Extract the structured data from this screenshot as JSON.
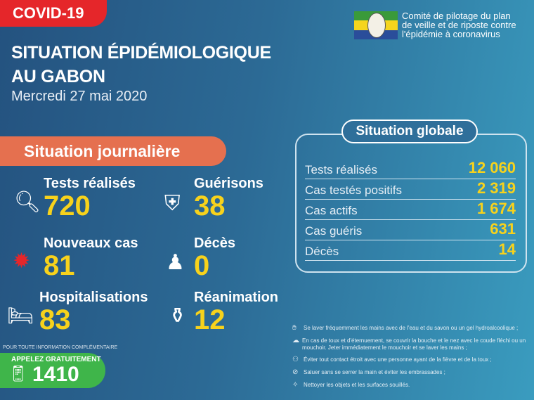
{
  "header": {
    "badge": "COVID-19",
    "title_line1": "SITUATION ÉPIDÉMIOLOGIQUE",
    "title_line2": "AU GABON",
    "date": "Mercredi 27 mai 2020",
    "committee": [
      "Comité de pilotage du plan",
      "de veille et de riposte contre",
      "l'épidémie à coronavirus"
    ],
    "flag_colors": [
      "#3a9a3a",
      "#f5d51e",
      "#2a4d9a"
    ]
  },
  "daily": {
    "title": "Situation journalière",
    "stats": [
      {
        "label": "Tests réalisés",
        "value": "720",
        "icon": "magnifier-icon"
      },
      {
        "label": "Guérisons",
        "value": "38",
        "icon": "healing-shield-icon"
      },
      {
        "label": "Nouveaux cas",
        "value": "81",
        "icon": "virus-icon"
      },
      {
        "label": "Décès",
        "value": "0",
        "icon": "person-icon"
      },
      {
        "label": "Hospitalisations",
        "value": "83",
        "icon": "hospital-bed-icon"
      },
      {
        "label": "Réanimation",
        "value": "12",
        "icon": "oxygen-tank-icon"
      }
    ]
  },
  "global": {
    "title": "Situation globale",
    "rows": [
      {
        "label": "Tests réalisés",
        "value": "12 060"
      },
      {
        "label": "Cas testés positifs",
        "value": "2 319"
      },
      {
        "label": "Cas actifs",
        "value": "1 674"
      },
      {
        "label": "Cas guéris",
        "value": "631"
      },
      {
        "label": "Décès",
        "value": "14"
      }
    ]
  },
  "hotline": {
    "note": "POUR TOUTE INFORMATION COMPLÉMENTAIRE",
    "label": "APPELEZ GRATUITEMENT",
    "number": "1410"
  },
  "tips": [
    "Se laver fréquemment les mains avec de l'eau et du savon ou un gel hydroalcoolique ;",
    "En cas de toux et d'éternuement, se couvrir la bouche et le nez avec le coude fléchi ou un mouchoir. Jeter immédiatement le mouchoir et se laver les mains ;",
    "Éviter tout contact étroit avec une personne ayant de la fièvre et de la toux ;",
    "Saluer sans se serrer la main et éviter les embrassades ;",
    "Nettoyer les objets et les surfaces souillés."
  ],
  "colors": {
    "badge": "#e5262a",
    "daily_pill": "#e5704f",
    "values": "#f7d21c",
    "hotline": "#3fb54a"
  }
}
